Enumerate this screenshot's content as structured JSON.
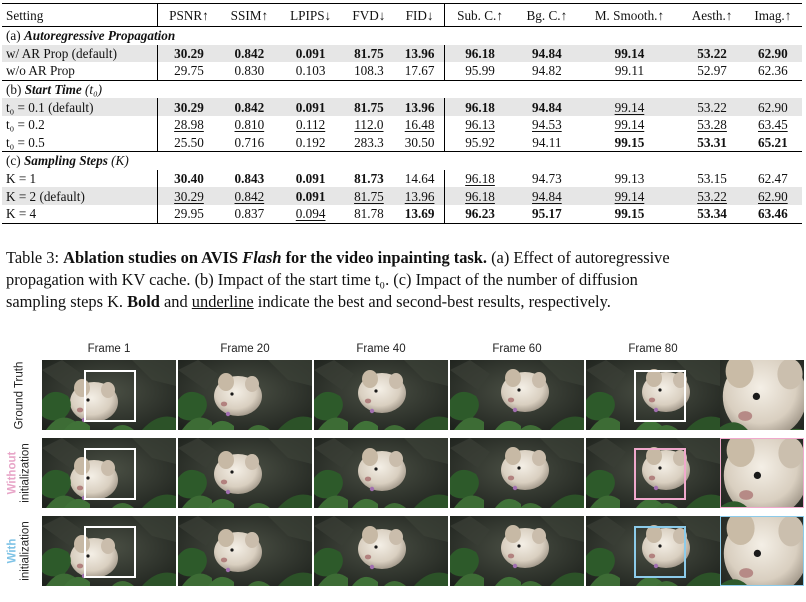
{
  "table": {
    "header": [
      "Setting",
      "PSNR↑",
      "SSIM↑",
      "LPIPS↓",
      "FVD↓",
      "FID↓",
      "Sub. C.↑",
      "Bg. C.↑",
      "M. Smooth.↑",
      "Aesth.↑",
      "Imag.↑"
    ],
    "sections": [
      {
        "title_prefix": "(a) ",
        "title_em": "Autoregressive Propagation",
        "title_suffix": "",
        "rows": [
          {
            "setting": "w/ AR Prop (default)",
            "shade": true,
            "cells": [
              {
                "v": "30.29",
                "b": true
              },
              {
                "v": "0.842",
                "b": true
              },
              {
                "v": "0.091",
                "b": true
              },
              {
                "v": "81.75",
                "b": true
              },
              {
                "v": "13.96",
                "b": true
              },
              {
                "v": "96.18",
                "b": true
              },
              {
                "v": "94.84",
                "b": true
              },
              {
                "v": "99.14",
                "b": true
              },
              {
                "v": "53.22",
                "b": true
              },
              {
                "v": "62.90",
                "b": true
              }
            ]
          },
          {
            "setting": "w/o AR Prop",
            "shade": false,
            "cells": [
              {
                "v": "29.75"
              },
              {
                "v": "0.830"
              },
              {
                "v": "0.103"
              },
              {
                "v": "108.3"
              },
              {
                "v": "17.67"
              },
              {
                "v": "95.99"
              },
              {
                "v": "94.82"
              },
              {
                "v": "99.11"
              },
              {
                "v": "52.97"
              },
              {
                "v": "62.36"
              }
            ]
          }
        ]
      },
      {
        "title_prefix": "(b) ",
        "title_em": "Start Time",
        "title_suffix": " (t₀)",
        "rows": [
          {
            "setting": "t₀ = 0.1 (default)",
            "shade": true,
            "cells": [
              {
                "v": "30.29",
                "b": true
              },
              {
                "v": "0.842",
                "b": true
              },
              {
                "v": "0.091",
                "b": true
              },
              {
                "v": "81.75",
                "b": true
              },
              {
                "v": "13.96",
                "b": true
              },
              {
                "v": "96.18",
                "b": true
              },
              {
                "v": "94.84",
                "b": true
              },
              {
                "v": "99.14",
                "u": true
              },
              {
                "v": "53.22"
              },
              {
                "v": "62.90"
              }
            ]
          },
          {
            "setting": "t₀ = 0.2",
            "shade": false,
            "cells": [
              {
                "v": "28.98",
                "u": true
              },
              {
                "v": "0.810",
                "u": true
              },
              {
                "v": "0.112",
                "u": true
              },
              {
                "v": "112.0",
                "u": true
              },
              {
                "v": "16.48",
                "u": true
              },
              {
                "v": "96.13",
                "u": true
              },
              {
                "v": "94.53",
                "u": true
              },
              {
                "v": "99.14",
                "u": true
              },
              {
                "v": "53.28",
                "u": true
              },
              {
                "v": "63.45",
                "u": true
              }
            ]
          },
          {
            "setting": "t₀ = 0.5",
            "shade": false,
            "cells": [
              {
                "v": "25.50"
              },
              {
                "v": "0.716"
              },
              {
                "v": "0.192"
              },
              {
                "v": "283.3"
              },
              {
                "v": "30.50"
              },
              {
                "v": "95.92"
              },
              {
                "v": "94.11"
              },
              {
                "v": "99.15",
                "b": true
              },
              {
                "v": "53.31",
                "b": true
              },
              {
                "v": "65.21",
                "b": true
              }
            ]
          }
        ]
      },
      {
        "title_prefix": "(c) ",
        "title_em": "Sampling Steps",
        "title_suffix": " (K)",
        "rows": [
          {
            "setting": "K = 1",
            "shade": false,
            "cells": [
              {
                "v": "30.40",
                "b": true
              },
              {
                "v": "0.843",
                "b": true
              },
              {
                "v": "0.091",
                "b": true
              },
              {
                "v": "81.73",
                "b": true
              },
              {
                "v": "14.64"
              },
              {
                "v": "96.18",
                "u": true
              },
              {
                "v": "94.73"
              },
              {
                "v": "99.13"
              },
              {
                "v": "53.15"
              },
              {
                "v": "62.47"
              }
            ]
          },
          {
            "setting": "K = 2 (default)",
            "shade": true,
            "cells": [
              {
                "v": "30.29",
                "u": true
              },
              {
                "v": "0.842",
                "u": true
              },
              {
                "v": "0.091",
                "b": true
              },
              {
                "v": "81.75",
                "u": true
              },
              {
                "v": "13.96",
                "u": true
              },
              {
                "v": "96.18",
                "u": true
              },
              {
                "v": "94.84",
                "u": true
              },
              {
                "v": "99.14",
                "u": true
              },
              {
                "v": "53.22",
                "u": true
              },
              {
                "v": "62.90",
                "u": true
              }
            ]
          },
          {
            "setting": "K = 4",
            "shade": false,
            "cells": [
              {
                "v": "29.95"
              },
              {
                "v": "0.837"
              },
              {
                "v": "0.094",
                "u": true
              },
              {
                "v": "81.78"
              },
              {
                "v": "13.69",
                "b": true
              },
              {
                "v": "96.23",
                "b": true
              },
              {
                "v": "95.17",
                "b": true
              },
              {
                "v": "99.15",
                "b": true
              },
              {
                "v": "53.34",
                "b": true
              },
              {
                "v": "63.46",
                "b": true
              }
            ]
          }
        ]
      }
    ]
  },
  "caption": {
    "label": "Table 3: ",
    "title_a": "Ablation studies on AVIS ",
    "title_em": "Flash",
    "title_b": " for the video inpainting task.",
    "line1_rest": " (a) Effect of autoregressive",
    "line2": "propagation with KV cache. (b) Impact of the start time t₀. (c) Impact of the number of diffusion",
    "line3_a": "sampling steps K. ",
    "bold_word": "Bold",
    "line3_b": " and ",
    "underline_word": "underline",
    "line3_c": " indicate the best and second-best results, respectively."
  },
  "figure": {
    "frame_labels": [
      "Frame 1",
      "Frame 20",
      "Frame 40",
      "Frame 60",
      "Frame 80"
    ],
    "rows": [
      {
        "label_accent": "",
        "label": "Ground Truth",
        "accent_color": "#ffffff",
        "box_color": "#ffffff"
      },
      {
        "label_accent": "Without",
        "label": "initialization",
        "accent_color": "#e8a6c8",
        "box_color": "#f0a8cc"
      },
      {
        "label_accent": "With",
        "label": "initialization",
        "accent_color": "#7fc3e6",
        "box_color": "#8ccbea"
      }
    ]
  }
}
